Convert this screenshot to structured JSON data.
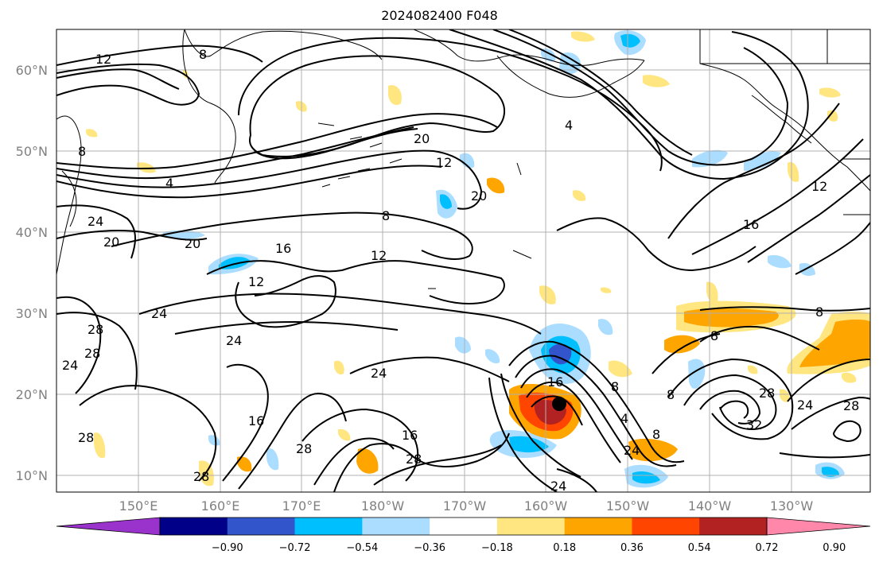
{
  "title": "2024082400 F048",
  "lat_labels": [
    "60°N",
    "50°N",
    "40°N",
    "30°N",
    "20°N",
    "10°N"
  ],
  "lon_labels": [
    "150°E",
    "160°E",
    "170°E",
    "180°W",
    "170°W",
    "160°W",
    "150°W",
    "140°W",
    "130°W"
  ],
  "colorbar": {
    "ticks": [
      "−0.90",
      "−0.72",
      "−0.54",
      "−0.36",
      "−0.18",
      "0.18",
      "0.36",
      "0.54",
      "0.72",
      "0.90"
    ],
    "colors": [
      "#9933cc",
      "#000088",
      "#3355cc",
      "#00bfff",
      "#aaddff",
      "#ffffff",
      "#ffe680",
      "#ffa500",
      "#ff4500",
      "#b22222",
      "#ff88aa"
    ]
  },
  "contour_labels": [
    "12",
    "8",
    "4",
    "4",
    "8",
    "20",
    "12",
    "20",
    "8",
    "12",
    "16",
    "20",
    "24",
    "20",
    "28",
    "12",
    "24",
    "24",
    "28",
    "24",
    "16",
    "24",
    "28",
    "16",
    "28",
    "28",
    "28",
    "24",
    "16",
    "8",
    "4",
    "8",
    "12",
    "16",
    "8",
    "8",
    "28",
    "32",
    "24",
    "28",
    "8",
    "24"
  ],
  "storm_marker": "storm-center",
  "palette": {
    "grid": "#b0b0b0",
    "contour": "#000000",
    "axis_label": "#808080"
  }
}
